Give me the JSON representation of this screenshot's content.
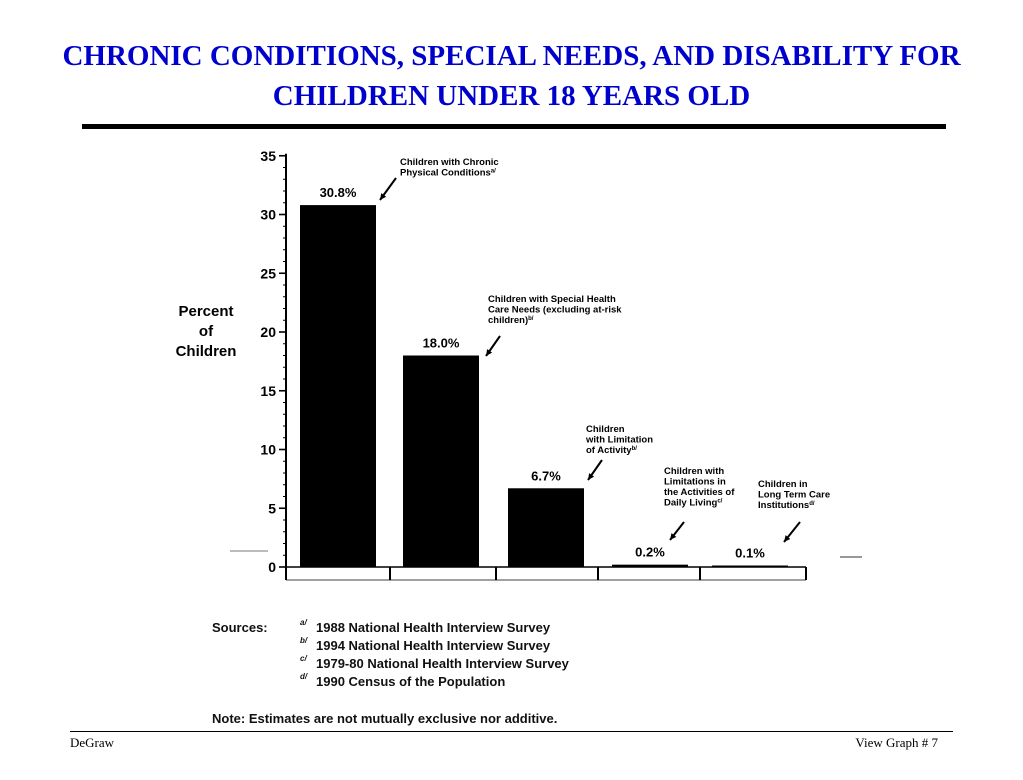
{
  "title": "CHRONIC CONDITIONS, SPECIAL NEEDS, AND DISABILITY FOR CHILDREN UNDER 18 YEARS OLD",
  "chart_data": {
    "type": "bar",
    "ylabel": "Percent of Children",
    "ylim": [
      0,
      35
    ],
    "yticks": [
      0,
      5,
      10,
      15,
      20,
      25,
      30,
      35
    ],
    "grid": false,
    "bar_color": "#000000",
    "categories": [
      "Children with Chronic Physical Conditions",
      "Children with Special Health Care Needs (excluding at-risk children)",
      "Children with Limitation of Activity",
      "Children with Limitations in the Activities of Daily Living",
      "Children in Long Term Care Institutions"
    ],
    "values": [
      30.8,
      18.0,
      6.7,
      0.2,
      0.1
    ],
    "data_labels": [
      "30.8%",
      "18.0%",
      "6.7%",
      "0.2%",
      "0.1%"
    ],
    "annotations": [
      {
        "lines": [
          "Children with Chronic",
          "Physical Conditions"
        ],
        "source": "a/"
      },
      {
        "lines": [
          "Children with Special Health",
          "Care Needs (excluding at-risk",
          "children)"
        ],
        "source": "b/"
      },
      {
        "lines": [
          "Children",
          "with Limitation",
          "of Activity"
        ],
        "source": "b/"
      },
      {
        "lines": [
          "Children with",
          "Limitations in",
          "the Activities of",
          "Daily Living"
        ],
        "source": "c/"
      },
      {
        "lines": [
          "Children in",
          "Long Term Care",
          "Institutions"
        ],
        "source": "d/"
      }
    ]
  },
  "sources": {
    "label": "Sources:",
    "items": [
      {
        "mark": "a/",
        "text": "1988 National Health Interview Survey"
      },
      {
        "mark": "b/",
        "text": "1994 National Health Interview Survey"
      },
      {
        "mark": "c/",
        "text": "1979-80 National Health Interview Survey"
      },
      {
        "mark": "d/",
        "text": "1990 Census of the Population"
      }
    ]
  },
  "note": "Note:  Estimates are not mutually exclusive nor additive.",
  "footer": {
    "left": "DeGraw",
    "right": "View Graph  # 7"
  }
}
